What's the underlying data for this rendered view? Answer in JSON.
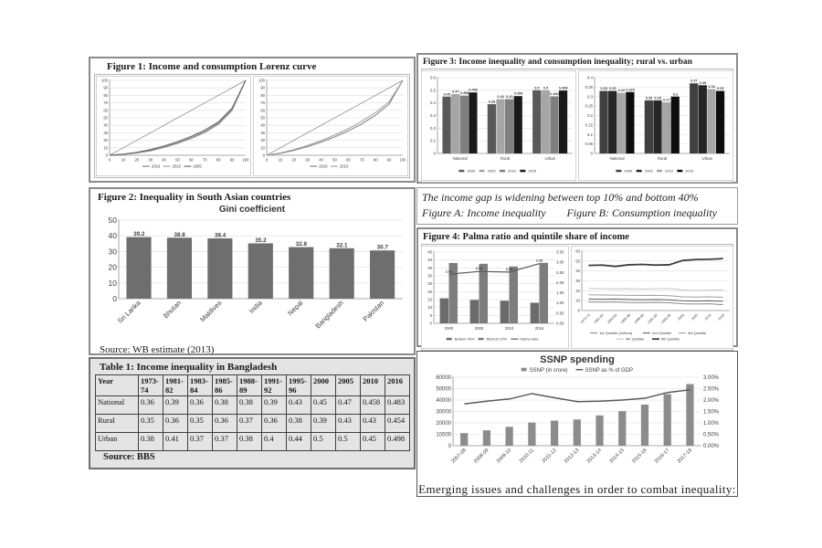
{
  "panels": {
    "fig1": {
      "title": "Figure 1: Income and consumption Lorenz curve"
    },
    "fig2": {
      "title": "Figure 2: Inequality in South Asian countries",
      "chart_title": "Gini coefficient",
      "source": "Source: WB estimate (2013)"
    },
    "table1": {
      "title": "Table 1: Income inequality in Bangladesh",
      "source": "Source: BBS",
      "columns": [
        "Year",
        "1973-74",
        "1981-82",
        "1983-84",
        "1985-86",
        "1988-89",
        "1991-92",
        "1995-96",
        "2000",
        "2005",
        "2010",
        "2016"
      ],
      "rows": [
        {
          "label": "National",
          "values": [
            "0.36",
            "0.39",
            "0.36",
            "0.38",
            "0.38",
            "0.39",
            "0.43",
            "0.45",
            "0.47",
            "0.458",
            "0.483"
          ]
        },
        {
          "label": "Rural",
          "values": [
            "0.35",
            "0.36",
            "0.35",
            "0.36",
            "0.37",
            "0.36",
            "0.38",
            "0.39",
            "0.43",
            "0.43",
            "0.454"
          ]
        },
        {
          "label": "Urban",
          "values": [
            "0.38",
            "0.41",
            "0.37",
            "0.37",
            "0.38",
            "0.4",
            "0.44",
            "0.5",
            "0.5",
            "0.45",
            "0.498"
          ]
        }
      ]
    },
    "fig3": {
      "title": "Figure 3: Income inequality and consumption inequality; rural vs. urban"
    },
    "caption": {
      "line1": "The income gap is widening between top 10% and bottom 40%",
      "line2a": "Figure A: Income inequality",
      "line2b": "Figure B: Consumption inequality"
    },
    "fig4": {
      "title": "Figure 4: Palma ratio and quintile share of income"
    },
    "ssnp": {
      "title": "SSNP spending",
      "note": "Emerging issues and challenges in order to combat inequality:"
    }
  },
  "chart_data": [
    {
      "id": "lorenz_income",
      "type": "line",
      "title": "Income Lorenz curve",
      "x": [
        0,
        10,
        20,
        30,
        40,
        50,
        60,
        70,
        80,
        90,
        100
      ],
      "ylim": [
        0,
        100
      ],
      "yticks": [
        0,
        10,
        20,
        30,
        40,
        50,
        60,
        70,
        80,
        90,
        100
      ],
      "diagonal": true,
      "legend_pos": "bottom",
      "series": [
        {
          "name": "2016",
          "type": "line",
          "color": "#7a7a7a",
          "values": [
            0,
            1,
            3,
            6,
            10.5,
            16,
            22.5,
            30.5,
            41.5,
            60,
            100
          ]
        },
        {
          "name": "2010",
          "type": "line",
          "color": "#9b9b9b",
          "values": [
            0,
            1.3,
            3.5,
            7,
            11.5,
            17,
            24,
            32,
            43,
            61.5,
            100
          ]
        },
        {
          "name": "2005",
          "type": "line",
          "color": "#5f5f5f",
          "values": [
            0,
            1.6,
            4,
            7.6,
            12.4,
            18.2,
            25.2,
            33.6,
            44.6,
            63,
            100
          ]
        }
      ]
    },
    {
      "id": "lorenz_consumption",
      "type": "line",
      "title": "Consumption Lorenz curve",
      "x": [
        0,
        10,
        20,
        30,
        40,
        50,
        60,
        70,
        80,
        90,
        100
      ],
      "ylim": [
        0,
        100
      ],
      "yticks": [
        0,
        10,
        20,
        30,
        40,
        50,
        60,
        70,
        80,
        90,
        100
      ],
      "diagonal": true,
      "legend_pos": "bottom",
      "series": [
        {
          "name": "2016",
          "type": "line",
          "color": "#7a7a7a",
          "values": [
            0,
            2.5,
            6.5,
            11.5,
            17.5,
            24.5,
            32.5,
            42,
            53.5,
            68.5,
            100
          ]
        },
        {
          "name": "2010",
          "type": "line",
          "color": "#9b9b9b",
          "values": [
            0,
            3,
            7.5,
            13,
            19.5,
            27,
            35.5,
            45.5,
            57,
            71.5,
            100
          ]
        }
      ]
    },
    {
      "id": "gini",
      "type": "bar",
      "title": "Gini coefficient",
      "categories": [
        "Sri Lanka",
        "Bhutan",
        "Maldives",
        "India",
        "Nepal",
        "Bangladesh",
        "Pakistan"
      ],
      "ylim": [
        0,
        50
      ],
      "yticks": [
        0,
        10,
        20,
        30,
        40,
        50
      ],
      "group_w": 0.62,
      "series": [
        {
          "name": "Gini coefficient",
          "type": "bar",
          "color": "#6e6e6e",
          "values": [
            39.2,
            38.8,
            38.4,
            35.2,
            32.8,
            32.1,
            30.7
          ],
          "labels": [
            "39.2",
            "38.8",
            "38.4",
            "35.2",
            "32.8",
            "32.1",
            "30.7"
          ]
        }
      ]
    },
    {
      "id": "fig3a",
      "type": "bar",
      "title": "Figure A: Income inequality",
      "categories": [
        "National",
        "Rural",
        "Urban"
      ],
      "ylim": [
        0,
        0.6
      ],
      "yticks": [
        0,
        0.1,
        0.2,
        0.3,
        0.4,
        0.5,
        0.6
      ],
      "ytick_labels": [
        "0",
        "0.1",
        "0.2",
        "0.3",
        "0.4",
        "0.5",
        "0.6"
      ],
      "group_w": 0.78,
      "legend_pos": "bottom",
      "series": [
        {
          "name": "2000",
          "type": "bar",
          "color": "#595959",
          "values": [
            0.45,
            0.39,
            0.5
          ],
          "labels": [
            "0.45",
            "0.39",
            "0.5"
          ]
        },
        {
          "name": "2005",
          "type": "bar",
          "color": "#a6a6a6",
          "values": [
            0.47,
            0.43,
            0.5
          ],
          "labels": [
            "0.47",
            "0.43",
            "0.5"
          ]
        },
        {
          "name": "2010",
          "type": "bar",
          "color": "#7f7f7f",
          "values": [
            0.458,
            0.43,
            0.452
          ],
          "labels": [
            "0.458",
            "0.43",
            "0.452"
          ]
        },
        {
          "name": "2016",
          "type": "bar",
          "color": "#1a1a1a",
          "values": [
            0.483,
            0.454,
            0.498
          ],
          "labels": [
            "0.483",
            "0.454",
            "0.498"
          ]
        }
      ]
    },
    {
      "id": "fig3b",
      "type": "bar",
      "title": "Figure B: Consumption inequality",
      "categories": [
        "National",
        "Rural",
        "Urban"
      ],
      "ylim": [
        0,
        0.4
      ],
      "yticks": [
        0,
        0.05,
        0.1,
        0.15,
        0.2,
        0.25,
        0.3,
        0.35,
        0.4
      ],
      "ytick_labels": [
        "0",
        "0.05",
        "0.1",
        "0.15",
        "0.2",
        "0.25",
        "0.3",
        "0.35",
        "0.4"
      ],
      "group_w": 0.78,
      "legend_pos": "bottom",
      "series": [
        {
          "name": "2000",
          "type": "bar",
          "color": "#404040",
          "values": [
            0.33,
            0.28,
            0.37
          ],
          "labels": [
            "0.33",
            "0.28",
            "0.37"
          ]
        },
        {
          "name": "2005",
          "type": "bar",
          "color": "#262626",
          "values": [
            0.33,
            0.28,
            0.36
          ],
          "labels": [
            "0.33",
            "0.28",
            "0.36"
          ]
        },
        {
          "name": "2010",
          "type": "bar",
          "color": "#a6a6a6",
          "values": [
            0.32,
            0.27,
            0.34
          ],
          "labels": [
            "0.32",
            "0.27",
            "0.34"
          ]
        },
        {
          "name": "2016",
          "type": "bar",
          "color": "#0d0d0d",
          "values": [
            0.324,
            0.3,
            0.33
          ],
          "labels": [
            "0.324",
            "0.3",
            "0.33"
          ]
        }
      ]
    },
    {
      "id": "palma",
      "type": "bar",
      "title": "Palma ratio",
      "categories": [
        "2000",
        "2005",
        "2010",
        "2016"
      ],
      "ylim": [
        0,
        45
      ],
      "yticks": [
        0,
        5,
        10,
        15,
        20,
        25,
        30,
        35,
        40,
        45
      ],
      "y2lim": [
        0,
        3.5
      ],
      "y2ticks": [
        0,
        0.5,
        1,
        1.5,
        2,
        2.5,
        3,
        3.5
      ],
      "y2tick_labels": [
        "0.00",
        "0.50",
        "1.00",
        "1.50",
        "2.00",
        "2.50",
        "3.00",
        "3.50"
      ],
      "group_w": 0.6,
      "legend_pos": "bottom",
      "series": [
        {
          "name": "Bottom 40%",
          "type": "bar",
          "color": "#6b6b6b",
          "values": [
            15.8,
            14.8,
            14.3,
            13.0
          ]
        },
        {
          "name": "Richest 10%",
          "type": "bar",
          "color": "#7d7d7d",
          "values": [
            38.1,
            37.6,
            35.9,
            38.2
          ]
        },
        {
          "name": "Palma ratio",
          "type": "line",
          "axis": "y2",
          "color": "#5a5a5a",
          "w": 1.2,
          "values": [
            2.41,
            2.55,
            2.52,
            2.93
          ],
          "labels": [
            "2.41",
            "2.55",
            "2.52",
            "2.93"
          ]
        }
      ]
    },
    {
      "id": "quintiles",
      "type": "line",
      "title": "Quintile share of income",
      "categories": [
        "1973-74",
        "1981-82",
        "1983-84",
        "1985-86",
        "1988-89",
        "1991-92",
        "1995-96",
        "2000",
        "2005",
        "2010",
        "2016"
      ],
      "ylim": [
        0,
        60
      ],
      "yticks": [
        0,
        10,
        20,
        30,
        40,
        50,
        60
      ],
      "legend_pos": "bottom",
      "series": [
        {
          "name": "1st Quintile (bottom)",
          "type": "line",
          "color": "#8a8a8a",
          "values": [
            8.6,
            8.4,
            8.6,
            8.1,
            8.0,
            8.2,
            7.8,
            6.8,
            6.6,
            6.8,
            5.9
          ]
        },
        {
          "name": "2nd Quintile",
          "type": "line",
          "color": "#5f5f5f",
          "values": [
            11.6,
            11.4,
            11.6,
            11.2,
            11.0,
            11.2,
            10.8,
            9.8,
            9.6,
            9.8,
            9.4
          ]
        },
        {
          "name": "3rd Quintile",
          "type": "line",
          "color": "#9e9e9e",
          "values": [
            15.9,
            15.7,
            15.6,
            15.4,
            15.2,
            15.4,
            15.0,
            13.9,
            13.6,
            13.8,
            13.4
          ]
        },
        {
          "name": "4th Quintile",
          "type": "line",
          "color": "#c4c4c4",
          "values": [
            22.2,
            22.0,
            21.8,
            22.0,
            21.7,
            21.9,
            22.1,
            20.8,
            20.2,
            20.5,
            20.8
          ]
        },
        {
          "name": "5th Quintile",
          "type": "line",
          "color": "#3d3d3d",
          "w": 1.8,
          "values": [
            45.6,
            45.9,
            44.6,
            46.2,
            46.6,
            45.9,
            46.2,
            50.6,
            51.6,
            51.8,
            52.5
          ]
        }
      ]
    },
    {
      "id": "ssnp",
      "type": "bar",
      "title": "SSNP spending",
      "categories": [
        "2007-08",
        "2008-09",
        "2009-10",
        "2010-11",
        "2011-12",
        "2012-13",
        "2013-14",
        "2014-15",
        "2015-16",
        "2016-17",
        "2017-18"
      ],
      "ylim": [
        0,
        60000
      ],
      "yticks": [
        0,
        10000,
        20000,
        30000,
        40000,
        50000,
        60000
      ],
      "ytick_labels": [
        "0",
        "10000",
        "20000",
        "30000",
        "40000",
        "50000",
        "60000"
      ],
      "y2lim": [
        0,
        3
      ],
      "y2ticks": [
        0,
        0.5,
        1,
        1.5,
        2,
        2.5,
        3
      ],
      "y2tick_labels": [
        "0.00%",
        "0.50%",
        "1.00%",
        "1.50%",
        "2.00%",
        "2.50%",
        "3.00%"
      ],
      "group_w": 0.35,
      "legend_pos": "top",
      "series": [
        {
          "name": "SSNP (in crore)",
          "type": "bar",
          "color": "#8c8c8c",
          "values": [
            11000,
            13500,
            16500,
            20300,
            22000,
            23000,
            26500,
            30300,
            36000,
            45200,
            54000
          ]
        },
        {
          "name": "SSNP as % of GDP",
          "type": "line",
          "axis": "y2",
          "color": "#595959",
          "w": 1.4,
          "values": [
            1.83,
            1.95,
            2.05,
            2.28,
            2.1,
            1.93,
            1.95,
            2.0,
            2.08,
            2.33,
            2.45
          ]
        }
      ]
    }
  ]
}
